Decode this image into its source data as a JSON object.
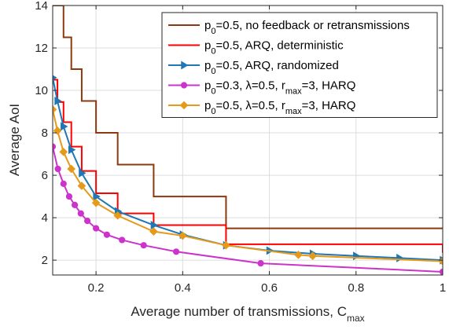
{
  "chart_data": {
    "type": "line",
    "xlabel": "Average number of transmissions, C",
    "xlabel_sub": "max",
    "ylabel": "Average AoI",
    "xlim": [
      0.1,
      1.0
    ],
    "ylim": [
      1.3,
      14
    ],
    "xticks": [
      0.2,
      0.4,
      0.6,
      0.8,
      1
    ],
    "xtick_labels": [
      "0.2",
      "0.4",
      "0.6",
      "0.8",
      "1"
    ],
    "yticks": [
      2,
      4,
      6,
      8,
      10,
      12,
      14
    ],
    "ytick_labels": [
      "2",
      "4",
      "6",
      "8",
      "10",
      "12",
      "14"
    ],
    "grid": true,
    "legend_position": "top-right",
    "series": [
      {
        "legend": {
          "p": "p",
          "sub": "0",
          "rest": "=0.5, no feedback or retransmissions"
        },
        "color": "#8B3A0F",
        "marker": "none",
        "step": true,
        "x": [
          0.1,
          0.111,
          0.125,
          0.143,
          0.167,
          0.2,
          0.25,
          0.333,
          0.5,
          1.0
        ],
        "y": [
          14.0,
          14.0,
          12.5,
          11.0,
          9.5,
          8.0,
          6.5,
          5.0,
          3.5,
          3.5
        ]
      },
      {
        "legend": {
          "p": "p",
          "sub": "0",
          "rest": "=0.5, ARQ, deterministic"
        },
        "color": "#FF0000",
        "marker": "none",
        "step": true,
        "x": [
          0.1,
          0.111,
          0.125,
          0.143,
          0.167,
          0.2,
          0.25,
          0.333,
          0.5,
          1.0
        ],
        "y": [
          10.5,
          9.45,
          8.5,
          7.35,
          6.2,
          5.15,
          4.2,
          3.65,
          2.75,
          2.35
        ]
      },
      {
        "legend": {
          "p": "p",
          "sub": "0",
          "rest": "=0.5, ARQ, randomized"
        },
        "color": "#1F77B4",
        "marker": "triangle-right",
        "step": false,
        "x": [
          0.1,
          0.111,
          0.125,
          0.143,
          0.167,
          0.2,
          0.25,
          0.333,
          0.4,
          0.5,
          0.6,
          0.7,
          0.8,
          0.9,
          1.0
        ],
        "y": [
          10.6,
          9.5,
          8.3,
          7.2,
          6.1,
          5.0,
          4.3,
          3.65,
          3.2,
          2.7,
          2.45,
          2.3,
          2.2,
          2.1,
          2.0
        ]
      },
      {
        "legend": {
          "p": "p",
          "sub": "0",
          "rest": "=0.3, λ=0.5, r",
          "sub2": "max",
          "rest2": "=3, HARQ"
        },
        "color": "#CC33CC",
        "marker": "circle",
        "step": false,
        "x": [
          0.1,
          0.112,
          0.125,
          0.138,
          0.151,
          0.165,
          0.18,
          0.2,
          0.225,
          0.26,
          0.31,
          0.385,
          0.58,
          1.0
        ],
        "y": [
          7.35,
          6.3,
          5.6,
          5.0,
          4.6,
          4.2,
          3.85,
          3.5,
          3.2,
          2.95,
          2.7,
          2.4,
          1.85,
          1.45
        ]
      },
      {
        "legend": {
          "p": "p",
          "sub": "0",
          "rest": "=0.5, λ=0.5, r",
          "sub2": "max",
          "rest2": "=3, HARQ"
        },
        "color": "#E69A1A",
        "marker": "diamond",
        "step": false,
        "x": [
          0.1,
          0.111,
          0.125,
          0.143,
          0.167,
          0.2,
          0.25,
          0.333,
          0.4,
          0.5,
          0.667,
          0.7,
          1.0
        ],
        "y": [
          9.1,
          8.1,
          7.1,
          6.3,
          5.5,
          4.7,
          4.1,
          3.35,
          3.15,
          2.7,
          2.25,
          2.2,
          1.95
        ]
      }
    ]
  }
}
